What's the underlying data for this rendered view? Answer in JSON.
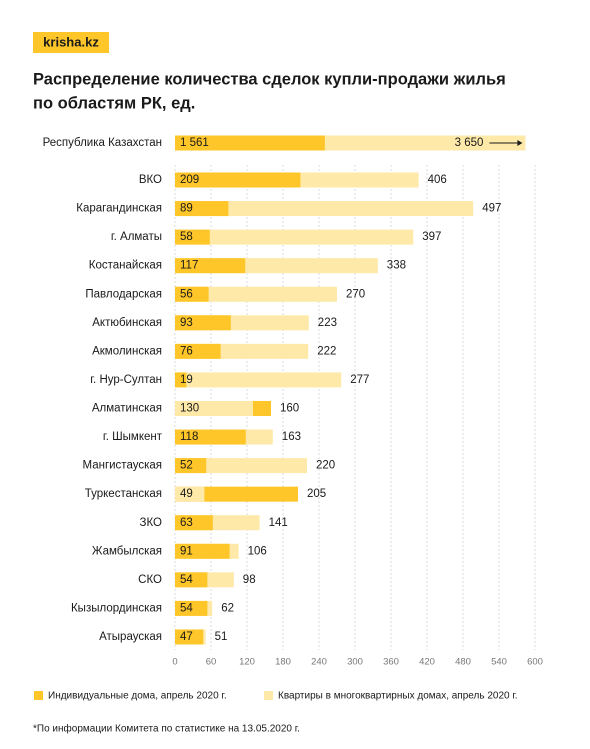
{
  "logo": "krisha.kz",
  "footnote": "*По информации Комитета по статистике на 13.05.2020 г.",
  "chart_data": [
    {
      "type": "hbar-overlap",
      "categories": [
        "Республика Казахстан"
      ],
      "series": [
        {
          "name": "Индивидуальные дома, апрель 2020 г.",
          "color": "#FFC629",
          "values": [
            1561
          ],
          "value_labels": [
            "1 561"
          ]
        },
        {
          "name": "Квартиры в многоквартирных домах, апрель 2020 г.",
          "color": "#FEE9A8",
          "values": [
            3650
          ],
          "value_labels": [
            "3 650"
          ]
        }
      ],
      "xlim": [
        0,
        3750
      ]
    },
    {
      "type": "hbar-overlap",
      "title": [
        "Распределение количества сделок купли-продажи жилья",
        "по областям РК, ед."
      ],
      "categories": [
        "ВКО",
        "Карагандинская",
        "г. Алматы",
        "Костанайская",
        "Павлодарская",
        "Актюбинская",
        "Акмолинская",
        "г. Нур-Султан",
        "Алматинская",
        "г. Шымкент",
        "Мангистауская",
        "Туркестанская",
        "ЗКО",
        "Жамбылская",
        "СКО",
        "Кызылординская",
        "Атырауская"
      ],
      "series": [
        {
          "name": "Индивидуальные дома, апрель 2020 г.",
          "color": "#FFC629",
          "values": [
            209,
            89,
            58,
            117,
            56,
            93,
            76,
            19,
            160,
            118,
            52,
            205,
            63,
            91,
            54,
            54,
            47
          ]
        },
        {
          "name": "Квартиры в многоквартирных домах, апрель 2020 г.",
          "color": "#FEE9A8",
          "values": [
            406,
            497,
            397,
            338,
            270,
            223,
            222,
            277,
            130,
            163,
            220,
            49,
            141,
            106,
            98,
            62,
            51
          ]
        }
      ],
      "xlim": [
        0,
        600
      ],
      "xticks": [
        0,
        60,
        120,
        180,
        240,
        300,
        360,
        420,
        480,
        540,
        600
      ],
      "grid": true
    }
  ]
}
